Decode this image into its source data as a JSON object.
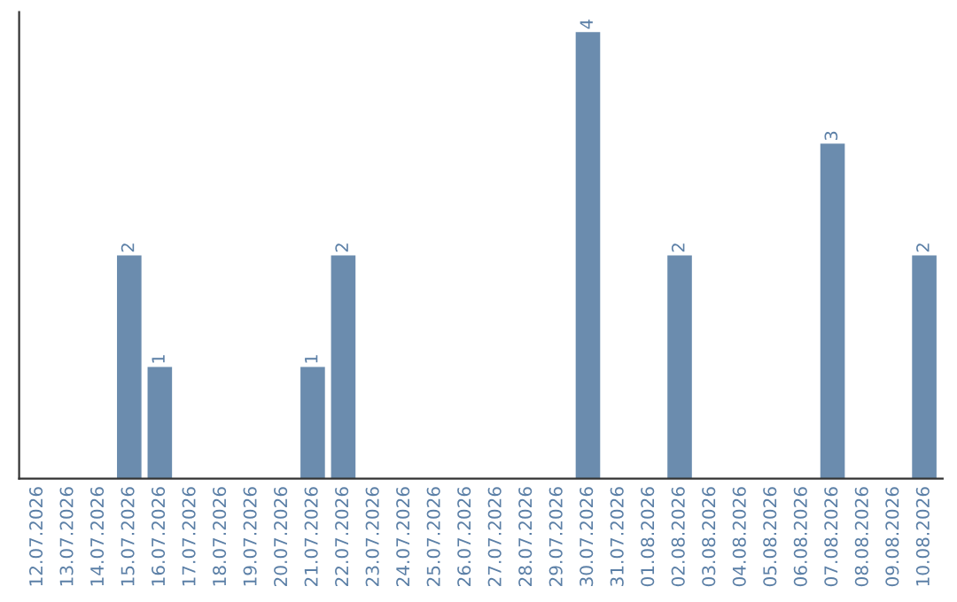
{
  "chart_data": {
    "type": "bar",
    "categories": [
      "12.07.2026",
      "13.07.2026",
      "14.07.2026",
      "15.07.2026",
      "16.07.2026",
      "17.07.2026",
      "18.07.2026",
      "19.07.2026",
      "20.07.2026",
      "21.07.2026",
      "22.07.2026",
      "23.07.2026",
      "24.07.2026",
      "25.07.2026",
      "26.07.2026",
      "27.07.2026",
      "28.07.2026",
      "29.07.2026",
      "30.07.2026",
      "31.07.2026",
      "01.08.2026",
      "02.08.2026",
      "03.08.2026",
      "04.08.2026",
      "05.08.2026",
      "06.08.2026",
      "07.08.2026",
      "08.08.2026",
      "09.08.2026",
      "10.08.2026"
    ],
    "values": [
      0,
      0,
      0,
      2,
      1,
      0,
      0,
      0,
      0,
      1,
      2,
      0,
      0,
      0,
      0,
      0,
      0,
      0,
      4,
      0,
      0,
      2,
      0,
      0,
      0,
      0,
      3,
      0,
      0,
      2
    ],
    "value_labels": [
      null,
      null,
      null,
      "2",
      "1",
      null,
      null,
      null,
      null,
      "1",
      "2",
      null,
      null,
      null,
      null,
      null,
      null,
      null,
      "4",
      null,
      null,
      "2",
      null,
      null,
      null,
      null,
      "3",
      null,
      null,
      "2"
    ],
    "color": "#6b8cae",
    "grid": false,
    "tick_labels": "x"
  }
}
